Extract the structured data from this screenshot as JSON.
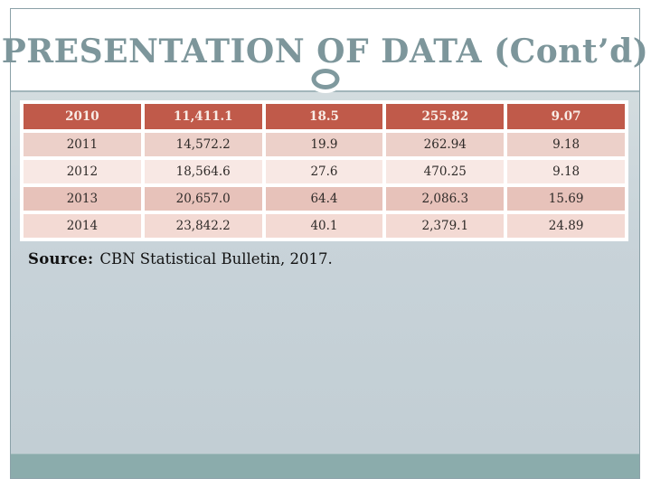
{
  "slide": {
    "title": "PRESENTATION OF DATA (Cont’d)",
    "source": {
      "label": "Source:",
      "text": "CBN Statistical Bulletin, 2017."
    }
  },
  "table": {
    "header_row": [
      "2010",
      "11,411.1",
      "18.5",
      "255.82",
      "9.07"
    ],
    "rows": [
      [
        "2011",
        "14,572.2",
        "19.9",
        "262.94",
        "9.18"
      ],
      [
        "2012",
        "18,564.6",
        "27.6",
        "470.25",
        "9.18"
      ],
      [
        "2013",
        "20,657.0",
        "64.4",
        "2,086.3",
        "15.69"
      ],
      [
        "2014",
        "23,842.2",
        "40.1",
        "2,379.1",
        "24.89"
      ]
    ]
  },
  "colors": {
    "title_text": "#7d969b",
    "slide_border": "#8ba1a8",
    "divider_line": "#a2b6bb",
    "circle_stroke": "#7f999e",
    "body_background_top": "#d3dcdf",
    "body_background_bottom": "#c2ced4",
    "table_header_bg": "#c05a4a",
    "table_header_text": "#f8ece6",
    "row_2011_bg": "#ecd0c9",
    "row_2012_bg": "#f8e8e4",
    "row_2013_bg": "#e7c2ba",
    "row_2014_bg": "#f3dad4",
    "cell_text": "#2e2a28",
    "footer_band": "#8bacac"
  }
}
